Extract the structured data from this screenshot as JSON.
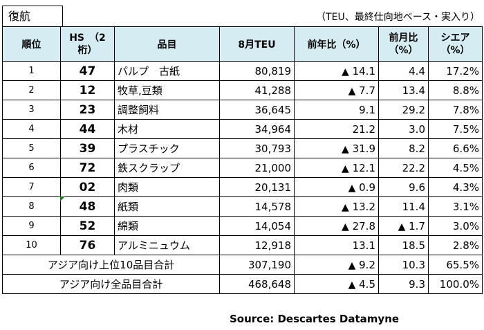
{
  "tab_label": "復航",
  "unit_note": "（TEU、最終仕向地ベース・実入り）",
  "headers": {
    "rank": "順位",
    "hs": "HS　（2桁）",
    "item": "品目",
    "teu": "8月TEU",
    "yoy": "前年比（%）",
    "mom": "前月比（%）",
    "share": "シエア（%）"
  },
  "rows": [
    {
      "rank": "1",
      "hs": "47",
      "item": "パルプ　古紙",
      "teu": "80,819",
      "yoy_neg": true,
      "yoy": "14.1",
      "mom_neg": false,
      "mom": "4.4",
      "share": "17.2%"
    },
    {
      "rank": "2",
      "hs": "12",
      "item": "牧草,豆類",
      "teu": "41,288",
      "yoy_neg": true,
      "yoy": "7.7",
      "mom_neg": false,
      "mom": "13.4",
      "share": "8.8%"
    },
    {
      "rank": "3",
      "hs": "23",
      "item": "調整飼料",
      "teu": "36,645",
      "yoy_neg": false,
      "yoy": "9.1",
      "mom_neg": false,
      "mom": "29.2",
      "share": "7.8%"
    },
    {
      "rank": "4",
      "hs": "44",
      "item": "木材",
      "teu": "34,964",
      "yoy_neg": false,
      "yoy": "21.2",
      "mom_neg": false,
      "mom": "3.0",
      "share": "7.5%"
    },
    {
      "rank": "5",
      "hs": "39",
      "item": "プラスチック",
      "teu": "30,793",
      "yoy_neg": true,
      "yoy": "31.9",
      "mom_neg": false,
      "mom": "8.2",
      "share": "6.6%"
    },
    {
      "rank": "6",
      "hs": "72",
      "item": "鉄スクラップ",
      "teu": "21,000",
      "yoy_neg": true,
      "yoy": "12.1",
      "mom_neg": false,
      "mom": "22.2",
      "share": "4.5%"
    },
    {
      "rank": "7",
      "hs": "02",
      "item": "肉類",
      "teu": "20,131",
      "yoy_neg": true,
      "yoy": "0.9",
      "mom_neg": false,
      "mom": "9.6",
      "share": "4.3%"
    },
    {
      "rank": "8",
      "hs": "48",
      "item": "紙類",
      "teu": "14,578",
      "yoy_neg": true,
      "yoy": "13.2",
      "mom_neg": false,
      "mom": "11.4",
      "share": "3.1%"
    },
    {
      "rank": "9",
      "hs": "52",
      "item": "綿類",
      "teu": "14,054",
      "yoy_neg": true,
      "yoy": "27.8",
      "mom_neg": true,
      "mom": "1.7",
      "share": "3.0%"
    },
    {
      "rank": "10",
      "hs": "76",
      "item": "アルミニュウム",
      "teu": "12,918",
      "yoy_neg": false,
      "yoy": "13.1",
      "mom_neg": false,
      "mom": "18.5",
      "share": "2.8%"
    }
  ],
  "totals": [
    {
      "label": "アジア向け上位10品目合計",
      "teu": "307,190",
      "yoy_neg": true,
      "yoy": "9.2",
      "mom_neg": false,
      "mom": "10.3",
      "share": "65.5%"
    },
    {
      "label": "アジア向け全品目合計",
      "teu": "468,648",
      "yoy_neg": true,
      "yoy": "4.5",
      "mom_neg": false,
      "mom": "9.3",
      "share": "100.0%"
    }
  ],
  "neg_marker": "▲",
  "source": "Source: Descartes Datamyne"
}
